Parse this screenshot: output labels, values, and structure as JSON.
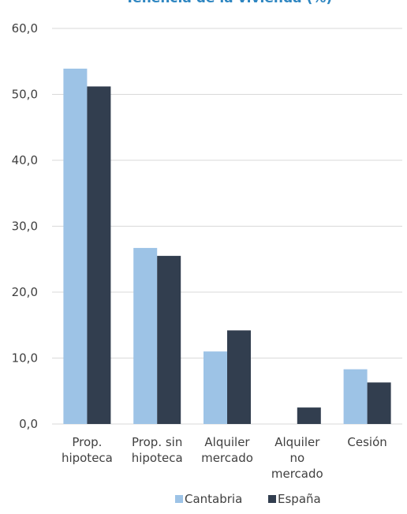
{
  "chart_data": {
    "type": "bar",
    "title": "Tenencia de la vivienda (%)",
    "categories": [
      [
        "Prop.",
        "hipoteca"
      ],
      [
        "Prop. sin",
        "hipoteca"
      ],
      [
        "Alquiler",
        "mercado"
      ],
      [
        "Alquiler",
        "no",
        "mercado"
      ],
      [
        "Cesión"
      ]
    ],
    "series": [
      {
        "name": "Cantabria",
        "color": "#9dc3e6",
        "values": [
          53.9,
          26.7,
          11.0,
          0.0,
          8.3
        ]
      },
      {
        "name": "España",
        "color": "#323e4f",
        "values": [
          51.2,
          25.5,
          14.2,
          2.5,
          6.3
        ]
      }
    ],
    "ylim": [
      0,
      60
    ],
    "yticks": [
      "0,0",
      "10,0",
      "20,0",
      "30,0",
      "40,0",
      "50,0",
      "60,0"
    ],
    "grid": true,
    "legend_position": "bottom"
  }
}
